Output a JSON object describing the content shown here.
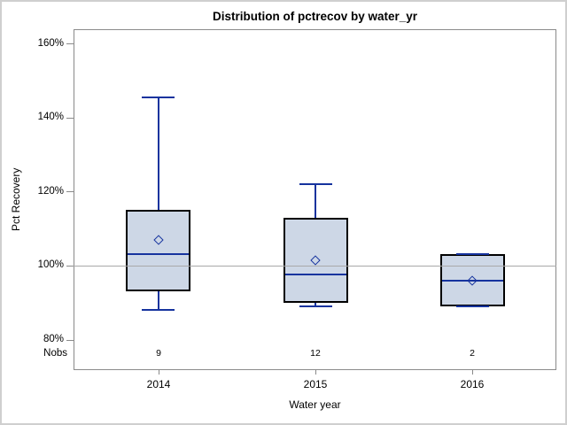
{
  "title": "Distribution of pctrecov by water_yr",
  "chart_data": {
    "type": "boxplot",
    "title": "Distribution of pctrecov by water_yr",
    "xlabel": "Water year",
    "ylabel": "Pct Recovery",
    "nobs_label": "Nobs",
    "axis": {
      "min": 80,
      "max": 160,
      "ticks": [
        160,
        140,
        120,
        100,
        80
      ],
      "tick_suffix": "%"
    },
    "reference_line": 100,
    "categories": [
      "2014",
      "2015",
      "2016"
    ],
    "nobs": [
      9,
      12,
      2
    ],
    "series": [
      {
        "category": "2014",
        "n": 9,
        "whisker_low": 88,
        "q1": 93,
        "median": 103,
        "q3": 115,
        "whisker_high": 145.5,
        "mean": 107
      },
      {
        "category": "2015",
        "n": 12,
        "whisker_low": 89,
        "q1": 90,
        "median": 97.5,
        "q3": 113,
        "whisker_high": 122,
        "mean": 101.5
      },
      {
        "category": "2016",
        "n": 2,
        "whisker_low": 89,
        "q1": 89,
        "median": 96,
        "q3": 103,
        "whisker_high": 103,
        "mean": 96
      }
    ],
    "legend": null,
    "grid": "off",
    "colors": {
      "box_fill": "#cdd7e6",
      "box_border": "#000000",
      "line": "#16339e",
      "reference_line": "#a9a9a9",
      "axis": "#8a8a8a",
      "frame": "#cfcfcf",
      "text": "#000000"
    }
  }
}
